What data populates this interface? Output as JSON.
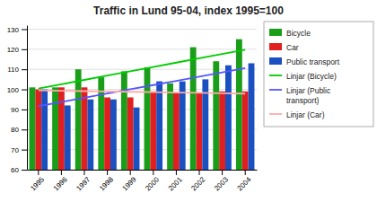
{
  "chart_data": {
    "type": "bar",
    "title": "Traffic in Lund 95-04, index 1995=100",
    "categories": [
      "1995",
      "1996",
      "1997",
      "1998",
      "1999",
      "2000",
      "2001",
      "2002",
      "2003",
      "2004"
    ],
    "series": [
      {
        "name": "Bicycle",
        "type": "bar",
        "color": "#1a9e1a",
        "values": [
          101,
          101,
          110,
          106,
          109,
          111,
          103,
          121,
          114,
          125
        ]
      },
      {
        "name": "Car",
        "type": "bar",
        "color": "#e02020",
        "values": [
          100,
          101,
          101,
          96,
          96,
          99,
          98,
          98,
          99,
          99
        ]
      },
      {
        "name": "Public transport",
        "type": "bar",
        "color": "#1a50c0",
        "values": [
          100,
          92,
          95,
          95,
          91,
          104,
          104,
          105,
          112,
          113
        ]
      },
      {
        "name": "Linjar (Bicycle)",
        "type": "line",
        "color": "#00cc00",
        "values": [
          100.418182,
          102.569697,
          104.721212,
          106.872727,
          109.024242,
          111.175758,
          113.327273,
          115.478788,
          117.630303,
          119.781818
        ]
      },
      {
        "name": "Linjar (Public\ntransport)",
        "type": "line",
        "color": "#5555ff",
        "values": [
          91.636364,
          93.739394,
          95.842424,
          97.945455,
          100.048485,
          102.151515,
          104.254545,
          106.357576,
          108.460606,
          110.563636
        ]
      },
      {
        "name": "Linjar (Car)",
        "type": "line",
        "color": "#ffaaaa",
        "values": [
          99.490909,
          99.315152,
          99.139394,
          98.963636,
          98.787879,
          98.612121,
          98.436364,
          98.260606,
          98.084848,
          97.909091
        ]
      }
    ],
    "ylim": [
      60,
      132
    ],
    "yticks": [
      60,
      70,
      80,
      90,
      100,
      110,
      120,
      130
    ],
    "grid": true,
    "legend": "right"
  }
}
